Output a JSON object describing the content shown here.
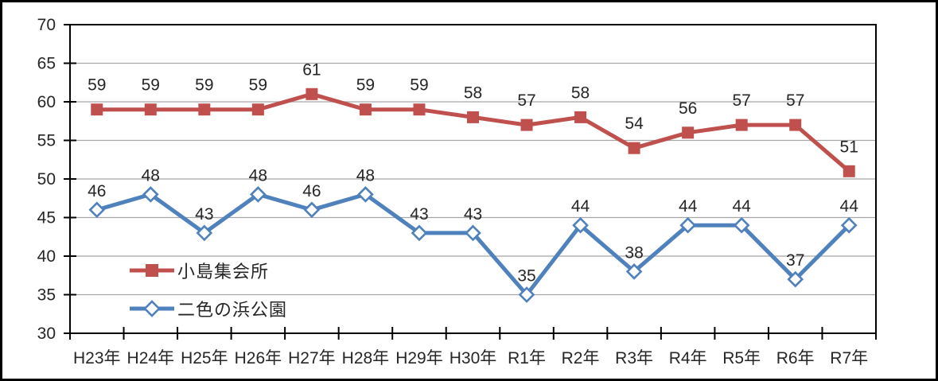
{
  "chart_data": {
    "type": "line",
    "categories": [
      "H23年",
      "H24年",
      "H25年",
      "H26年",
      "H27年",
      "H28年",
      "H29年",
      "H30年",
      "R1年",
      "R2年",
      "R3年",
      "R4年",
      "R5年",
      "R6年",
      "R7年"
    ],
    "series": [
      {
        "name": "小島集会所",
        "values": [
          59,
          59,
          59,
          59,
          61,
          59,
          59,
          58,
          57,
          58,
          54,
          56,
          57,
          57,
          51
        ],
        "color": "#C0504D",
        "marker": "square"
      },
      {
        "name": "二色の浜公園",
        "values": [
          46,
          48,
          43,
          48,
          46,
          48,
          43,
          43,
          35,
          44,
          38,
          44,
          44,
          37,
          44
        ],
        "color": "#4F81BD",
        "marker": "diamond"
      }
    ],
    "title": "",
    "xlabel": "",
    "ylabel": "",
    "ylim": [
      30,
      70
    ],
    "yticks": [
      70,
      65,
      60,
      55,
      50,
      45,
      40,
      35,
      30
    ],
    "ytick_step": 5,
    "grid": "horizontal",
    "gridline_color": "#A6A6A6",
    "axis_color": "#000000",
    "text_color": "#262626",
    "data_labels": true,
    "legend_position": "inside-left"
  }
}
